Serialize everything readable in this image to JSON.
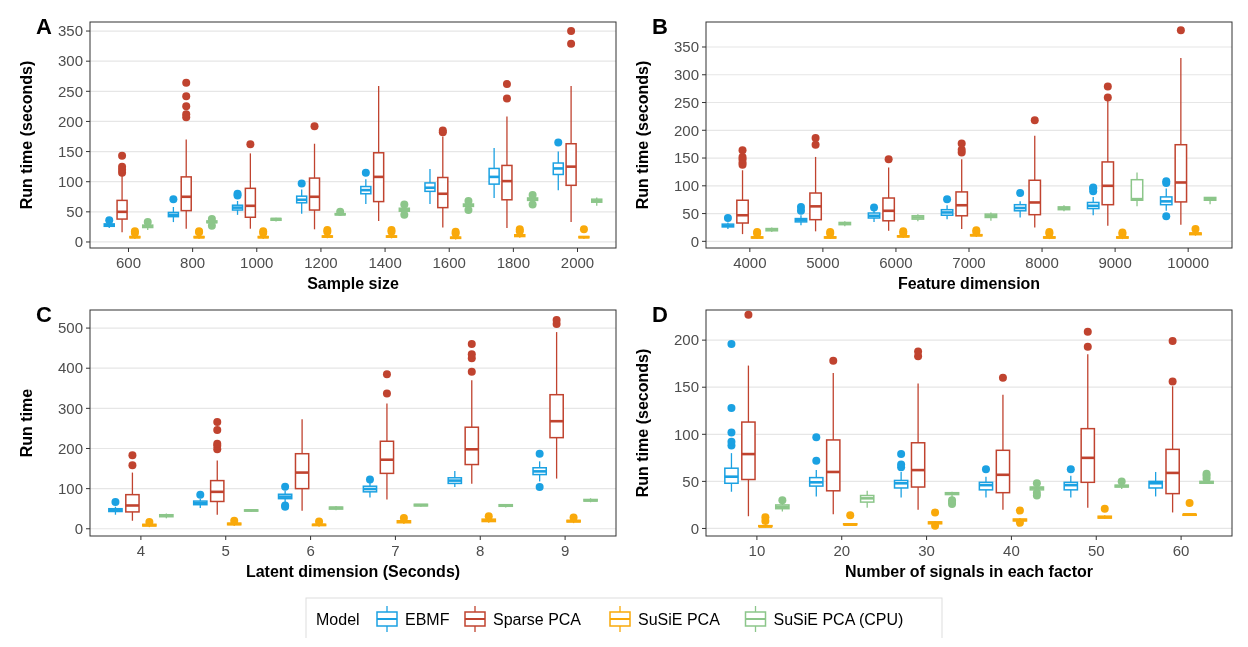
{
  "chart_data": [
    {
      "type": "box",
      "title": "A",
      "xlabel": "Sample size",
      "ylabel": "Run time (seconds)",
      "categories": [
        "600",
        "800",
        "1000",
        "1200",
        "1400",
        "1600",
        "1800",
        "2000"
      ],
      "ylim": [
        -10,
        365
      ],
      "yticks": [
        0,
        50,
        100,
        150,
        200,
        250,
        300,
        350
      ],
      "grid": "y",
      "legend": "bottom",
      "legend_title": "Model",
      "series": [
        {
          "name": "EBMF",
          "color": "#1ba1e2",
          "boxes": [
            {
              "low": 23,
              "q1": 26,
              "median": 28,
              "q3": 30,
              "high": 33,
              "outliers": [
                36
              ]
            },
            {
              "low": 33,
              "q1": 42,
              "median": 45,
              "q3": 49,
              "high": 58,
              "outliers": [
                71
              ]
            },
            {
              "low": 45,
              "q1": 53,
              "median": 57,
              "q3": 61,
              "high": 68,
              "outliers": [
                77,
                80
              ]
            },
            {
              "low": 47,
              "q1": 65,
              "median": 70,
              "q3": 76,
              "high": 87,
              "outliers": [
                97
              ]
            },
            {
              "low": 63,
              "q1": 80,
              "median": 86,
              "q3": 92,
              "high": 104,
              "outliers": [
                115
              ]
            },
            {
              "low": 63,
              "q1": 84,
              "median": 90,
              "q3": 98,
              "high": 121
            },
            {
              "low": 73,
              "q1": 96,
              "median": 108,
              "q3": 122,
              "high": 156
            },
            {
              "low": 86,
              "q1": 112,
              "median": 122,
              "q3": 131,
              "high": 150,
              "outliers": [
                165
              ]
            }
          ]
        },
        {
          "name": "Sparse PCA",
          "color": "#c0432f",
          "boxes": [
            {
              "low": 16,
              "q1": 38,
              "median": 50,
              "q3": 69,
              "high": 110,
              "outliers": [
                115,
                120,
                125,
                143
              ]
            },
            {
              "low": 22,
              "q1": 52,
              "median": 75,
              "q3": 108,
              "high": 170,
              "outliers": [
                207,
                212,
                225,
                242,
                264
              ]
            },
            {
              "low": 22,
              "q1": 41,
              "median": 60,
              "q3": 89,
              "high": 147,
              "outliers": [
                162
              ]
            },
            {
              "low": 21,
              "q1": 53,
              "median": 75,
              "q3": 106,
              "high": 163,
              "outliers": [
                192
              ]
            },
            {
              "low": 35,
              "q1": 67,
              "median": 108,
              "q3": 148,
              "high": 259
            },
            {
              "low": 24,
              "q1": 57,
              "median": 80,
              "q3": 107,
              "high": 175,
              "outliers": [
                182,
                185
              ]
            },
            {
              "low": 23,
              "q1": 70,
              "median": 101,
              "q3": 127,
              "high": 208,
              "outliers": [
                238,
                262
              ]
            },
            {
              "low": 33,
              "q1": 94,
              "median": 125,
              "q3": 163,
              "high": 259,
              "outliers": [
                329,
                350
              ]
            }
          ]
        },
        {
          "name": "SuSiE PCA",
          "color": "#f9a90a",
          "boxes": [
            {
              "low": 5,
              "q1": 7,
              "median": 8,
              "q3": 9,
              "high": 11,
              "outliers": [
                15,
                18
              ]
            },
            {
              "low": 5,
              "q1": 7,
              "median": 8,
              "q3": 9,
              "high": 11,
              "outliers": [
                16,
                18
              ]
            },
            {
              "low": 5,
              "q1": 7,
              "median": 8,
              "q3": 9,
              "high": 11,
              "outliers": [
                15,
                18
              ]
            },
            {
              "low": 6,
              "q1": 8,
              "median": 9,
              "q3": 10,
              "high": 12,
              "outliers": [
                17,
                20
              ]
            },
            {
              "low": 6,
              "q1": 8,
              "median": 9,
              "q3": 10,
              "high": 12,
              "outliers": [
                17,
                20
              ]
            },
            {
              "low": 4,
              "q1": 6,
              "median": 7,
              "q3": 8,
              "high": 10,
              "outliers": [
                14,
                17
              ]
            },
            {
              "low": 7,
              "q1": 9,
              "median": 11,
              "q3": 12,
              "high": 14,
              "outliers": [
                18,
                21
              ]
            },
            {
              "low": 5,
              "q1": 7,
              "median": 8,
              "q3": 9,
              "high": 10,
              "outliers": [
                21
              ]
            }
          ]
        },
        {
          "name": "SuSiE PCA (CPU)",
          "color": "#8cc68a",
          "boxes": [
            {
              "low": 20,
              "q1": 24,
              "median": 26,
              "q3": 28,
              "high": 30,
              "outliers": [
                33
              ]
            },
            {
              "low": 30,
              "q1": 32,
              "median": 33,
              "q3": 35,
              "high": 36,
              "outliers": [
                27,
                38
              ]
            },
            {
              "low": 34,
              "q1": 36,
              "median": 38,
              "q3": 39,
              "high": 40
            },
            {
              "low": 44,
              "q1": 45,
              "median": 46,
              "q3": 47,
              "high": 48,
              "outliers": [
                50
              ]
            },
            {
              "low": 48,
              "q1": 51,
              "median": 53,
              "q3": 56,
              "high": 58,
              "outliers": [
                45,
                62
              ]
            },
            {
              "low": 56,
              "q1": 59,
              "median": 61,
              "q3": 63,
              "high": 65,
              "outliers": [
                53,
                68
              ]
            },
            {
              "low": 66,
              "q1": 69,
              "median": 71,
              "q3": 73,
              "high": 75,
              "outliers": [
                62,
                78
              ]
            },
            {
              "low": 60,
              "q1": 66,
              "median": 68,
              "q3": 71,
              "high": 74
            }
          ]
        }
      ]
    },
    {
      "type": "box",
      "title": "B",
      "xlabel": "Feature dimension",
      "ylabel": "Run time (seconds)",
      "categories": [
        "4000",
        "5000",
        "6000",
        "7000",
        "8000",
        "9000",
        "10000"
      ],
      "ylim": [
        -12,
        395
      ],
      "yticks": [
        0,
        50,
        100,
        150,
        200,
        250,
        300,
        350
      ],
      "grid": "y",
      "series": [
        {
          "color": "#1ba1e2",
          "boxes": [
            {
              "low": 22,
              "q1": 26,
              "median": 28,
              "q3": 31,
              "high": 34,
              "outliers": [
                42
              ]
            },
            {
              "low": 29,
              "q1": 35,
              "median": 38,
              "q3": 41,
              "high": 47,
              "outliers": [
                55,
                62
              ]
            },
            {
              "low": 35,
              "q1": 42,
              "median": 46,
              "q3": 51,
              "high": 56,
              "outliers": [
                61
              ]
            },
            {
              "low": 40,
              "q1": 47,
              "median": 52,
              "q3": 57,
              "high": 65,
              "outliers": [
                76
              ]
            },
            {
              "low": 43,
              "q1": 55,
              "median": 60,
              "q3": 66,
              "high": 72,
              "outliers": [
                87
              ]
            },
            {
              "low": 47,
              "q1": 59,
              "median": 64,
              "q3": 70,
              "high": 80,
              "outliers": [
                90,
                95,
                97
              ]
            },
            {
              "low": 55,
              "q1": 66,
              "median": 72,
              "q3": 80,
              "high": 95,
              "outliers": [
                45,
                105,
                108
              ]
            }
          ]
        },
        {
          "color": "#c0432f",
          "boxes": [
            {
              "low": 13,
              "q1": 33,
              "median": 47,
              "q3": 74,
              "high": 128,
              "outliers": [
                138,
                142,
                148,
                152,
                164
              ]
            },
            {
              "low": 18,
              "q1": 39,
              "median": 63,
              "q3": 87,
              "high": 152,
              "outliers": [
                174,
                186
              ]
            },
            {
              "low": 19,
              "q1": 37,
              "median": 55,
              "q3": 78,
              "high": 133,
              "outliers": [
                148
              ]
            },
            {
              "low": 22,
              "q1": 46,
              "median": 65,
              "q3": 89,
              "high": 148,
              "outliers": [
                160,
                165,
                176
              ]
            },
            {
              "low": 25,
              "q1": 48,
              "median": 70,
              "q3": 110,
              "high": 190,
              "outliers": [
                218
              ]
            },
            {
              "low": 28,
              "q1": 66,
              "median": 100,
              "q3": 143,
              "high": 255,
              "outliers": [
                259,
                279
              ]
            },
            {
              "low": 30,
              "q1": 71,
              "median": 106,
              "q3": 174,
              "high": 330,
              "outliers": [
                380
              ]
            }
          ]
        },
        {
          "color": "#f9a90a",
          "boxes": [
            {
              "low": 4,
              "q1": 6,
              "median": 7,
              "q3": 8,
              "high": 10,
              "outliers": [
                14,
                17
              ]
            },
            {
              "low": 4,
              "q1": 6,
              "median": 7,
              "q3": 8,
              "high": 10,
              "outliers": [
                14,
                17
              ]
            },
            {
              "low": 6,
              "q1": 8,
              "median": 9,
              "q3": 10,
              "high": 12,
              "outliers": [
                15,
                18
              ]
            },
            {
              "low": 8,
              "q1": 10,
              "median": 11,
              "q3": 12,
              "high": 14,
              "outliers": [
                17,
                20
              ]
            },
            {
              "low": 4,
              "q1": 6,
              "median": 7,
              "q3": 8,
              "high": 10,
              "outliers": [
                14,
                17
              ]
            },
            {
              "low": 4,
              "q1": 6,
              "median": 7,
              "q3": 8,
              "high": 10,
              "outliers": [
                13,
                16
              ]
            },
            {
              "low": 10,
              "q1": 12,
              "median": 14,
              "q3": 15,
              "high": 18,
              "outliers": [
                22
              ]
            }
          ]
        },
        {
          "color": "#8cc68a",
          "boxes": [
            {
              "low": 17,
              "q1": 19,
              "median": 21,
              "q3": 23,
              "high": 25
            },
            {
              "low": 27,
              "q1": 30,
              "median": 32,
              "q3": 34,
              "high": 36
            },
            {
              "low": 36,
              "q1": 40,
              "median": 43,
              "q3": 46,
              "high": 49
            },
            {
              "low": 37,
              "q1": 43,
              "median": 46,
              "q3": 49,
              "high": 52
            },
            {
              "low": 54,
              "q1": 57,
              "median": 60,
              "q3": 62,
              "high": 65
            },
            {
              "low": 63,
              "q1": 74,
              "median": 76,
              "q3": 111,
              "high": 124
            },
            {
              "low": 67,
              "q1": 74,
              "median": 76,
              "q3": 79,
              "high": 80
            }
          ]
        }
      ]
    },
    {
      "type": "box",
      "title": "C",
      "xlabel": "Latent dimension (Seconds)",
      "ylabel": "Run time",
      "categories": [
        "4",
        "5",
        "6",
        "7",
        "8",
        "9"
      ],
      "ylim": [
        -18,
        545
      ],
      "yticks": [
        0,
        100,
        200,
        300,
        400,
        500
      ],
      "grid": "y",
      "series": [
        {
          "color": "#1ba1e2",
          "boxes": [
            {
              "low": 35,
              "q1": 43,
              "median": 46,
              "q3": 50,
              "high": 55,
              "outliers": [
                67
              ]
            },
            {
              "low": 52,
              "q1": 60,
              "median": 64,
              "q3": 69,
              "high": 75,
              "outliers": [
                85
              ]
            },
            {
              "low": 63,
              "q1": 75,
              "median": 80,
              "q3": 86,
              "high": 95,
              "outliers": [
                55,
                58,
                105
              ]
            },
            {
              "low": 78,
              "q1": 92,
              "median": 99,
              "q3": 106,
              "high": 115,
              "outliers": [
                123
              ]
            },
            {
              "low": 104,
              "q1": 113,
              "median": 120,
              "q3": 127,
              "high": 144
            },
            {
              "low": 118,
              "q1": 135,
              "median": 143,
              "q3": 152,
              "high": 168,
              "outliers": [
                104,
                187
              ]
            }
          ]
        },
        {
          "color": "#c0432f",
          "boxes": [
            {
              "low": 20,
              "q1": 42,
              "median": 58,
              "q3": 85,
              "high": 140,
              "outliers": [
                158,
                183
              ]
            },
            {
              "low": 35,
              "q1": 68,
              "median": 92,
              "q3": 120,
              "high": 170,
              "outliers": [
                198,
                207,
                212,
                246,
                266
              ]
            },
            {
              "low": 45,
              "q1": 100,
              "median": 140,
              "q3": 187,
              "high": 273
            },
            {
              "low": 73,
              "q1": 138,
              "median": 172,
              "q3": 218,
              "high": 312,
              "outliers": [
                337,
                385
              ]
            },
            {
              "low": 112,
              "q1": 160,
              "median": 198,
              "q3": 253,
              "high": 370,
              "outliers": [
                391,
                425,
                435,
                460
              ]
            },
            {
              "low": 125,
              "q1": 227,
              "median": 268,
              "q3": 334,
              "high": 490,
              "outliers": [
                510,
                520
              ]
            }
          ]
        },
        {
          "color": "#f9a90a",
          "boxes": [
            {
              "low": 4,
              "q1": 7,
              "median": 9,
              "q3": 11,
              "high": 13,
              "outliers": [
                17
              ]
            },
            {
              "low": 7,
              "q1": 10,
              "median": 12,
              "q3": 14,
              "high": 16,
              "outliers": [
                20
              ]
            },
            {
              "low": 5,
              "q1": 8,
              "median": 10,
              "q3": 11,
              "high": 13,
              "outliers": [
                18
              ]
            },
            {
              "low": 12,
              "q1": 15,
              "median": 18,
              "q3": 20,
              "high": 23,
              "outliers": [
                27
              ]
            },
            {
              "low": 15,
              "q1": 18,
              "median": 21,
              "q3": 24,
              "high": 27,
              "outliers": [
                31
              ]
            },
            {
              "low": 14,
              "q1": 17,
              "median": 19,
              "q3": 21,
              "high": 24,
              "outliers": [
                28
              ]
            }
          ]
        },
        {
          "color": "#8cc68a",
          "boxes": [
            {
              "low": 26,
              "q1": 30,
              "median": 33,
              "q3": 35,
              "high": 38
            },
            {
              "low": 42,
              "q1": 44,
              "median": 46,
              "q3": 47,
              "high": 48
            },
            {
              "low": 46,
              "q1": 49,
              "median": 52,
              "q3": 54,
              "high": 57
            },
            {
              "low": 55,
              "q1": 57,
              "median": 59,
              "q3": 61,
              "high": 62
            },
            {
              "low": 53,
              "q1": 56,
              "median": 58,
              "q3": 60,
              "high": 61
            },
            {
              "low": 66,
              "q1": 69,
              "median": 71,
              "q3": 73,
              "high": 76
            }
          ]
        }
      ]
    },
    {
      "type": "box",
      "title": "D",
      "xlabel": "Number of signals in each factor",
      "ylabel": "Run time (seconds)",
      "categories": [
        "10",
        "20",
        "30",
        "40",
        "50",
        "60"
      ],
      "ylim": [
        -8,
        232
      ],
      "yticks": [
        0,
        50,
        100,
        150,
        200
      ],
      "grid": "y",
      "series": [
        {
          "color": "#1ba1e2",
          "boxes": [
            {
              "low": 39,
              "q1": 48,
              "median": 55,
              "q3": 64,
              "high": 80,
              "outliers": [
                88,
                92,
                102,
                128,
                196
              ]
            },
            {
              "low": 34,
              "q1": 45,
              "median": 49,
              "q3": 54,
              "high": 62,
              "outliers": [
                72,
                97
              ]
            },
            {
              "low": 33,
              "q1": 43,
              "median": 48,
              "q3": 51,
              "high": 60,
              "outliers": [
                65,
                68,
                79
              ]
            },
            {
              "low": 33,
              "q1": 41,
              "median": 46,
              "q3": 49,
              "high": 55,
              "outliers": [
                63
              ]
            },
            {
              "low": 33,
              "q1": 41,
              "median": 46,
              "q3": 49,
              "high": 56,
              "outliers": [
                63
              ]
            },
            {
              "low": 34,
              "q1": 43,
              "median": 48,
              "q3": 50,
              "high": 60
            }
          ]
        },
        {
          "color": "#c0432f",
          "boxes": [
            {
              "low": 13,
              "q1": 52,
              "median": 79,
              "q3": 113,
              "high": 173,
              "outliers": [
                227
              ]
            },
            {
              "low": 15,
              "q1": 40,
              "median": 60,
              "q3": 94,
              "high": 165,
              "outliers": [
                178
              ]
            },
            {
              "low": 20,
              "q1": 44,
              "median": 62,
              "q3": 91,
              "high": 154,
              "outliers": [
                183,
                188
              ]
            },
            {
              "low": 20,
              "q1": 38,
              "median": 57,
              "q3": 83,
              "high": 142,
              "outliers": [
                160
              ]
            },
            {
              "low": 22,
              "q1": 49,
              "median": 75,
              "q3": 106,
              "high": 185,
              "outliers": [
                193,
                209
              ]
            },
            {
              "low": 17,
              "q1": 37,
              "median": 59,
              "q3": 84,
              "high": 151,
              "outliers": [
                156,
                199
              ]
            }
          ]
        },
        {
          "color": "#f9a90a",
          "boxes": [
            {
              "low": 1,
              "q1": 2,
              "median": 2,
              "q3": 3,
              "high": 4,
              "outliers": [
                8,
                12
              ]
            },
            {
              "low": 3,
              "q1": 4,
              "median": 4,
              "q3": 5,
              "high": 5,
              "outliers": [
                14
              ]
            },
            {
              "low": 4,
              "q1": 5,
              "median": 6,
              "q3": 7,
              "high": 8,
              "outliers": [
                3,
                17
              ]
            },
            {
              "low": 7,
              "q1": 8,
              "median": 9,
              "q3": 10,
              "high": 11,
              "outliers": [
                6,
                19
              ]
            },
            {
              "low": 10,
              "q1": 11,
              "median": 12,
              "q3": 13,
              "high": 14,
              "outliers": [
                21
              ]
            },
            {
              "low": 14,
              "q1": 14,
              "median": 15,
              "q3": 15,
              "high": 16,
              "outliers": [
                27
              ]
            }
          ]
        },
        {
          "color": "#8cc68a",
          "boxes": [
            {
              "low": 18,
              "q1": 21,
              "median": 23,
              "q3": 25,
              "high": 27,
              "outliers": [
                30
              ]
            },
            {
              "low": 22,
              "q1": 28,
              "median": 32,
              "q3": 35,
              "high": 40
            },
            {
              "low": 33,
              "q1": 36,
              "median": 37,
              "q3": 38,
              "high": 39,
              "outliers": [
                26,
                28,
                30
              ]
            },
            {
              "low": 40,
              "q1": 41,
              "median": 43,
              "q3": 44,
              "high": 45,
              "outliers": [
                35,
                38,
                48
              ]
            },
            {
              "low": 42,
              "q1": 44,
              "median": 45,
              "q3": 46,
              "high": 47,
              "outliers": [
                50
              ]
            },
            {
              "low": 48,
              "q1": 48,
              "median": 49,
              "q3": 50,
              "high": 50,
              "outliers": [
                53,
                56,
                58
              ]
            }
          ]
        }
      ]
    }
  ]
}
